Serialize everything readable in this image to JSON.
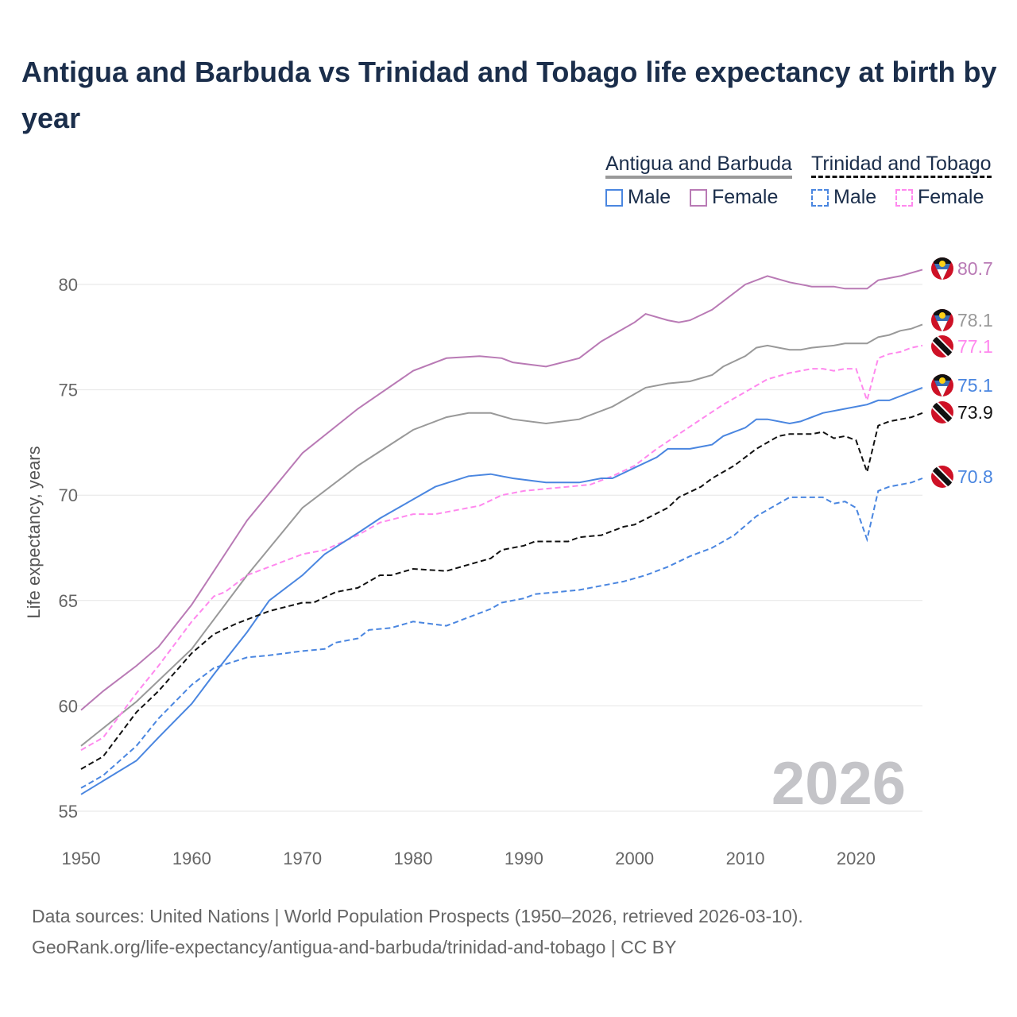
{
  "title": "Antigua and Barbuda vs Trinidad and Tobago life expectancy at birth by year",
  "legend": {
    "groups": [
      {
        "name": "Antigua and Barbuda",
        "style": "solid",
        "items": [
          "Male",
          "Female"
        ]
      },
      {
        "name": "Trinidad and Tobago",
        "style": "dashed",
        "items": [
          "Male",
          "Female"
        ]
      }
    ]
  },
  "watermark_year": "2026",
  "footer": {
    "line1": "Data sources: United Nations | World Population Prospects (1950–2026, retrieved 2026-03-10).",
    "line2": "GeoRank.org/life-expectancy/antigua-and-barbuda/trinidad-and-tobago | CC BY"
  },
  "chart_data": {
    "type": "line",
    "title": "Antigua and Barbuda vs Trinidad and Tobago life expectancy at birth by year",
    "xlabel": "",
    "ylabel": "Life expectancy, years",
    "xlim": [
      1950,
      2026
    ],
    "ylim": [
      55,
      82
    ],
    "xticks": [
      1950,
      1960,
      1970,
      1980,
      1990,
      2000,
      2010,
      2020
    ],
    "yticks": [
      55,
      60,
      65,
      70,
      75,
      80
    ],
    "grid": true,
    "legend_position": "top-right",
    "series": [
      {
        "name": "Antigua and Barbuda Female",
        "country": "Antigua and Barbuda",
        "flag": "ag",
        "color": "#b97ab5",
        "dash": false,
        "end_label": "80.7",
        "x": [
          1950,
          1952,
          1955,
          1957,
          1960,
          1965,
          1970,
          1975,
          1980,
          1983,
          1986,
          1988,
          1989,
          1992,
          1995,
          1997,
          2000,
          2001,
          2003,
          2004,
          2005,
          2007,
          2010,
          2012,
          2014,
          2016,
          2018,
          2019,
          2021,
          2022,
          2024,
          2026
        ],
        "y": [
          59.8,
          60.7,
          61.9,
          62.8,
          64.8,
          68.8,
          72.0,
          74.1,
          75.9,
          76.5,
          76.6,
          76.5,
          76.3,
          76.1,
          76.5,
          77.3,
          78.2,
          78.6,
          78.3,
          78.2,
          78.3,
          78.8,
          80.0,
          80.4,
          80.1,
          79.9,
          79.9,
          79.8,
          79.8,
          80.2,
          80.4,
          80.7
        ]
      },
      {
        "name": "Antigua and Barbuda Total",
        "country": "Antigua and Barbuda",
        "flag": "ag",
        "color": "#999999",
        "dash": false,
        "end_label": "78.1",
        "x": [
          1950,
          1955,
          1960,
          1965,
          1970,
          1975,
          1980,
          1983,
          1985,
          1987,
          1989,
          1992,
          1995,
          1998,
          2000,
          2001,
          2003,
          2005,
          2007,
          2008,
          2010,
          2011,
          2012,
          2014,
          2015,
          2016,
          2018,
          2019,
          2021,
          2022,
          2023,
          2024,
          2025,
          2026
        ],
        "y": [
          58.1,
          60.2,
          62.7,
          66.2,
          69.4,
          71.4,
          73.1,
          73.7,
          73.9,
          73.9,
          73.6,
          73.4,
          73.6,
          74.2,
          74.8,
          75.1,
          75.3,
          75.4,
          75.7,
          76.1,
          76.6,
          77.0,
          77.1,
          76.9,
          76.9,
          77.0,
          77.1,
          77.2,
          77.2,
          77.5,
          77.6,
          77.8,
          77.9,
          78.1
        ]
      },
      {
        "name": "Trinidad and Tobago Female",
        "country": "Trinidad and Tobago",
        "flag": "tt",
        "color": "#ff88ee",
        "dash": true,
        "end_label": "77.1",
        "x": [
          1950,
          1952,
          1955,
          1957,
          1960,
          1962,
          1963,
          1965,
          1967,
          1970,
          1972,
          1975,
          1977,
          1980,
          1982,
          1984,
          1986,
          1988,
          1990,
          1992,
          1994,
          1996,
          1998,
          2000,
          2002,
          2004,
          2006,
          2008,
          2010,
          2012,
          2014,
          2016,
          2017,
          2018,
          2019,
          2020,
          2021,
          2022,
          2023,
          2024,
          2025,
          2026
        ],
        "y": [
          57.9,
          58.5,
          60.6,
          61.9,
          64.0,
          65.2,
          65.4,
          66.2,
          66.6,
          67.2,
          67.4,
          68.1,
          68.7,
          69.1,
          69.1,
          69.3,
          69.5,
          70.0,
          70.2,
          70.3,
          70.4,
          70.5,
          70.9,
          71.4,
          72.2,
          72.9,
          73.6,
          74.3,
          74.9,
          75.5,
          75.8,
          76.0,
          76.0,
          75.9,
          76.0,
          76.0,
          74.5,
          76.5,
          76.7,
          76.8,
          77.0,
          77.1
        ]
      },
      {
        "name": "Antigua and Barbuda Male",
        "country": "Antigua and Barbuda",
        "flag": "ag",
        "color": "#4a86e0",
        "dash": false,
        "end_label": "75.1",
        "x": [
          1950,
          1955,
          1957,
          1960,
          1962,
          1965,
          1967,
          1970,
          1972,
          1975,
          1977,
          1980,
          1982,
          1985,
          1987,
          1989,
          1992,
          1995,
          1997,
          1998,
          2000,
          2002,
          2003,
          2005,
          2007,
          2008,
          2010,
          2011,
          2012,
          2014,
          2015,
          2017,
          2019,
          2021,
          2022,
          2023,
          2026
        ],
        "y": [
          55.8,
          57.4,
          58.5,
          60.1,
          61.5,
          63.5,
          65.0,
          66.2,
          67.2,
          68.2,
          68.9,
          69.8,
          70.4,
          70.9,
          71.0,
          70.8,
          70.6,
          70.6,
          70.8,
          70.8,
          71.3,
          71.8,
          72.2,
          72.2,
          72.4,
          72.8,
          73.2,
          73.6,
          73.6,
          73.4,
          73.5,
          73.9,
          74.1,
          74.3,
          74.5,
          74.5,
          75.1
        ]
      },
      {
        "name": "Trinidad and Tobago Total",
        "country": "Trinidad and Tobago",
        "flag": "tt",
        "color": "#111111",
        "dash": true,
        "end_label": "73.9",
        "x": [
          1950,
          1952,
          1955,
          1957,
          1960,
          1962,
          1964,
          1965,
          1967,
          1970,
          1971,
          1973,
          1975,
          1977,
          1978,
          1980,
          1983,
          1985,
          1987,
          1988,
          1990,
          1991,
          1994,
          1995,
          1997,
          1999,
          2000,
          2003,
          2004,
          2006,
          2007,
          2009,
          2011,
          2013,
          2014,
          2016,
          2017,
          2018,
          2019,
          2020,
          2021,
          2022,
          2023,
          2025,
          2026
        ],
        "y": [
          57.0,
          57.6,
          59.7,
          60.7,
          62.5,
          63.4,
          63.9,
          64.1,
          64.5,
          64.9,
          64.9,
          65.4,
          65.6,
          66.2,
          66.2,
          66.5,
          66.4,
          66.7,
          67.0,
          67.4,
          67.6,
          67.8,
          67.8,
          68.0,
          68.1,
          68.5,
          68.6,
          69.4,
          69.9,
          70.4,
          70.8,
          71.4,
          72.2,
          72.8,
          72.9,
          72.9,
          73.0,
          72.7,
          72.8,
          72.6,
          71.1,
          73.3,
          73.5,
          73.7,
          73.9
        ]
      },
      {
        "name": "Trinidad and Tobago Male",
        "country": "Trinidad and Tobago",
        "flag": "tt",
        "color": "#4a86e0",
        "dash": true,
        "end_label": "70.8",
        "x": [
          1950,
          1952,
          1955,
          1957,
          1960,
          1962,
          1965,
          1967,
          1970,
          1972,
          1973,
          1975,
          1976,
          1978,
          1980,
          1983,
          1985,
          1987,
          1988,
          1990,
          1991,
          1993,
          1995,
          1997,
          1999,
          2001,
          2003,
          2005,
          2007,
          2009,
          2011,
          2013,
          2014,
          2017,
          2018,
          2019,
          2020,
          2021,
          2022,
          2023,
          2025,
          2026
        ],
        "y": [
          56.1,
          56.7,
          58.1,
          59.4,
          61.0,
          61.8,
          62.3,
          62.4,
          62.6,
          62.7,
          63.0,
          63.2,
          63.6,
          63.7,
          64.0,
          63.8,
          64.2,
          64.6,
          64.9,
          65.1,
          65.3,
          65.4,
          65.5,
          65.7,
          65.9,
          66.2,
          66.6,
          67.1,
          67.5,
          68.1,
          69.0,
          69.6,
          69.9,
          69.9,
          69.6,
          69.7,
          69.4,
          67.9,
          70.2,
          70.4,
          70.6,
          70.8
        ]
      }
    ]
  }
}
